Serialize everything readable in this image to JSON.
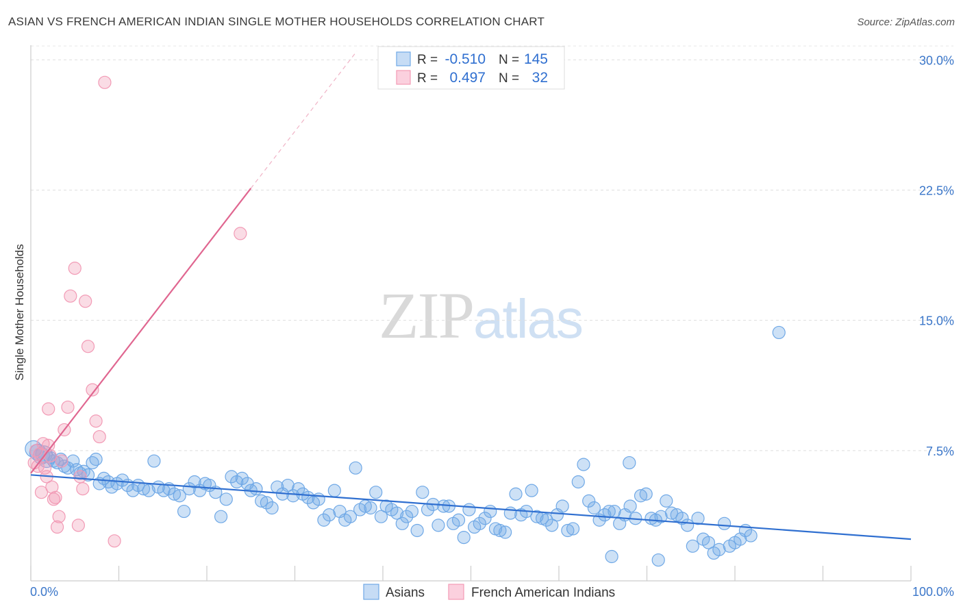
{
  "header": {
    "title": "ASIAN VS FRENCH AMERICAN INDIAN SINGLE MOTHER HOUSEHOLDS CORRELATION CHART",
    "source": "Source: ZipAtlas.com"
  },
  "watermark": {
    "zip": "ZIP",
    "atlas": "atlas"
  },
  "legend_box": {
    "rows": [
      {
        "r_label": "R =",
        "r_value": "-0.510",
        "n_label": "N =",
        "n_value": "145"
      },
      {
        "r_label": "R =",
        "r_value": "0.497",
        "n_label": "N =",
        "n_value": "32"
      }
    ]
  },
  "colors": {
    "blue": "#6fa8e6",
    "blue_line": "#2f6fd0",
    "pink": "#f29ab5",
    "pink_line": "#e06690",
    "axis_label": "#3a76c9"
  },
  "chart_data": {
    "type": "scatter",
    "ylabel": "Single Mother Households",
    "xlim": [
      0,
      100
    ],
    "ylim": [
      0,
      31
    ],
    "x_tick_labels": [
      "0.0%",
      "100.0%"
    ],
    "y_ticks": [
      7.5,
      15.0,
      22.5,
      30.0
    ],
    "y_tick_labels": [
      "7.5%",
      "15.0%",
      "22.5%",
      "30.0%"
    ],
    "grid": true,
    "legend_position": "bottom",
    "series": [
      {
        "name": "Asians",
        "color": "#6fa8e6",
        "trend": {
          "x": [
            0,
            100
          ],
          "y": [
            6.1,
            2.4
          ],
          "dashed_extension": false
        },
        "points": [
          [
            0.3,
            7.6
          ],
          [
            0.8,
            7.4
          ],
          [
            1.2,
            7.2
          ],
          [
            1.5,
            7.3
          ],
          [
            1.8,
            7.0
          ],
          [
            2.2,
            7.1
          ],
          [
            2.6,
            6.9
          ],
          [
            3.0,
            6.8
          ],
          [
            3.4,
            7.0
          ],
          [
            3.8,
            6.6
          ],
          [
            4.2,
            6.5
          ],
          [
            4.8,
            6.9
          ],
          [
            5.2,
            6.4
          ],
          [
            5.6,
            6.2
          ],
          [
            6.0,
            6.3
          ],
          [
            6.5,
            6.1
          ],
          [
            7.0,
            6.8
          ],
          [
            7.4,
            7.0
          ],
          [
            7.8,
            5.6
          ],
          [
            8.3,
            5.9
          ],
          [
            8.8,
            5.7
          ],
          [
            9.2,
            5.4
          ],
          [
            9.8,
            5.6
          ],
          [
            10.4,
            5.8
          ],
          [
            11.0,
            5.5
          ],
          [
            11.6,
            5.2
          ],
          [
            12.2,
            5.5
          ],
          [
            12.8,
            5.3
          ],
          [
            13.4,
            5.2
          ],
          [
            14.0,
            6.9
          ],
          [
            14.5,
            5.4
          ],
          [
            15.1,
            5.2
          ],
          [
            15.7,
            5.3
          ],
          [
            16.3,
            5.0
          ],
          [
            16.9,
            4.9
          ],
          [
            17.4,
            4.0
          ],
          [
            18.0,
            5.3
          ],
          [
            18.6,
            5.7
          ],
          [
            19.2,
            5.2
          ],
          [
            19.8,
            5.6
          ],
          [
            20.3,
            5.5
          ],
          [
            21.0,
            5.1
          ],
          [
            21.6,
            3.7
          ],
          [
            22.2,
            4.7
          ],
          [
            22.8,
            6.0
          ],
          [
            23.4,
            5.7
          ],
          [
            24.0,
            5.9
          ],
          [
            24.6,
            5.6
          ],
          [
            25.0,
            5.2
          ],
          [
            25.6,
            5.3
          ],
          [
            26.2,
            4.6
          ],
          [
            26.8,
            4.5
          ],
          [
            27.4,
            4.2
          ],
          [
            28.0,
            5.4
          ],
          [
            28.6,
            5.0
          ],
          [
            29.2,
            5.5
          ],
          [
            29.8,
            4.9
          ],
          [
            30.4,
            5.3
          ],
          [
            30.9,
            5.0
          ],
          [
            31.5,
            4.8
          ],
          [
            32.1,
            4.5
          ],
          [
            32.7,
            4.7
          ],
          [
            33.3,
            3.5
          ],
          [
            33.9,
            3.8
          ],
          [
            34.5,
            5.2
          ],
          [
            35.1,
            4.0
          ],
          [
            35.7,
            3.5
          ],
          [
            36.3,
            3.7
          ],
          [
            36.9,
            6.5
          ],
          [
            37.4,
            4.1
          ],
          [
            38.0,
            4.3
          ],
          [
            38.6,
            4.2
          ],
          [
            39.2,
            5.1
          ],
          [
            39.8,
            3.7
          ],
          [
            40.4,
            4.3
          ],
          [
            41.0,
            4.1
          ],
          [
            41.6,
            3.9
          ],
          [
            42.2,
            3.3
          ],
          [
            42.7,
            3.7
          ],
          [
            43.3,
            4.0
          ],
          [
            43.9,
            2.9
          ],
          [
            44.5,
            5.1
          ],
          [
            45.1,
            4.1
          ],
          [
            45.7,
            4.4
          ],
          [
            46.3,
            3.2
          ],
          [
            46.9,
            4.3
          ],
          [
            47.5,
            4.3
          ],
          [
            48.0,
            3.3
          ],
          [
            48.6,
            3.5
          ],
          [
            49.2,
            2.5
          ],
          [
            49.8,
            4.1
          ],
          [
            50.4,
            3.1
          ],
          [
            51.0,
            3.3
          ],
          [
            51.6,
            3.6
          ],
          [
            52.2,
            4.0
          ],
          [
            52.8,
            3.0
          ],
          [
            53.3,
            2.9
          ],
          [
            53.9,
            2.8
          ],
          [
            54.5,
            3.9
          ],
          [
            55.1,
            5.0
          ],
          [
            55.7,
            3.8
          ],
          [
            56.3,
            4.0
          ],
          [
            56.9,
            5.2
          ],
          [
            57.5,
            3.7
          ],
          [
            58.1,
            3.6
          ],
          [
            58.6,
            3.5
          ],
          [
            59.2,
            3.2
          ],
          [
            59.8,
            3.8
          ],
          [
            60.4,
            4.3
          ],
          [
            61.0,
            2.9
          ],
          [
            61.6,
            3.0
          ],
          [
            62.2,
            5.7
          ],
          [
            62.8,
            6.7
          ],
          [
            63.4,
            4.6
          ],
          [
            64.0,
            4.2
          ],
          [
            64.6,
            3.5
          ],
          [
            65.2,
            3.8
          ],
          [
            65.7,
            4.0
          ],
          [
            66.3,
            4.0
          ],
          [
            66.9,
            3.3
          ],
          [
            67.5,
            3.8
          ],
          [
            68.1,
            4.3
          ],
          [
            68.7,
            3.6
          ],
          [
            69.3,
            4.9
          ],
          [
            69.9,
            5.0
          ],
          [
            70.5,
            3.6
          ],
          [
            71.0,
            3.5
          ],
          [
            71.6,
            3.7
          ],
          [
            72.2,
            4.6
          ],
          [
            72.8,
            3.9
          ],
          [
            73.4,
            3.8
          ],
          [
            74.0,
            3.6
          ],
          [
            74.6,
            3.2
          ],
          [
            75.2,
            2.0
          ],
          [
            75.8,
            3.6
          ],
          [
            76.4,
            2.4
          ],
          [
            77.0,
            2.2
          ],
          [
            77.6,
            1.6
          ],
          [
            78.2,
            1.8
          ],
          [
            78.8,
            3.3
          ],
          [
            79.4,
            2.0
          ],
          [
            80.0,
            2.2
          ],
          [
            80.6,
            2.4
          ],
          [
            81.2,
            2.9
          ],
          [
            81.8,
            2.6
          ],
          [
            85.0,
            14.3
          ],
          [
            68.0,
            6.8
          ],
          [
            71.3,
            1.2
          ],
          [
            66.0,
            1.4
          ]
        ]
      },
      {
        "name": "French American Indians",
        "color": "#f29ab5",
        "trend": {
          "x": [
            0,
            25
          ],
          "y": [
            6.2,
            22.6
          ],
          "dashed_extension": true
        },
        "points": [
          [
            0.4,
            6.8
          ],
          [
            0.6,
            7.5
          ],
          [
            0.8,
            6.6
          ],
          [
            1.0,
            7.3
          ],
          [
            1.2,
            5.1
          ],
          [
            1.4,
            7.9
          ],
          [
            1.6,
            6.5
          ],
          [
            1.8,
            6.0
          ],
          [
            2.0,
            7.8
          ],
          [
            2.2,
            7.2
          ],
          [
            2.4,
            5.4
          ],
          [
            2.6,
            4.7
          ],
          [
            2.8,
            4.8
          ],
          [
            3.0,
            3.1
          ],
          [
            3.2,
            3.7
          ],
          [
            3.5,
            6.9
          ],
          [
            3.8,
            8.7
          ],
          [
            4.2,
            10.0
          ],
          [
            4.5,
            16.4
          ],
          [
            5.0,
            18.0
          ],
          [
            5.4,
            3.2
          ],
          [
            5.6,
            6.0
          ],
          [
            5.9,
            5.3
          ],
          [
            6.2,
            16.1
          ],
          [
            6.5,
            13.5
          ],
          [
            7.0,
            11.0
          ],
          [
            7.4,
            9.2
          ],
          [
            7.8,
            8.3
          ],
          [
            8.4,
            28.7
          ],
          [
            9.5,
            2.3
          ],
          [
            23.8,
            20.0
          ],
          [
            2.0,
            9.9
          ]
        ]
      }
    ]
  }
}
